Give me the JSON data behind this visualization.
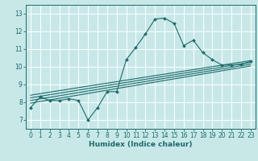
{
  "xlabel": "Humidex (Indice chaleur)",
  "bg_color": "#c8e8e8",
  "line_color": "#1a6b6b",
  "grid_color": "#ffffff",
  "xlim": [
    -0.5,
    23.5
  ],
  "ylim": [
    6.5,
    13.5
  ],
  "xticks": [
    0,
    1,
    2,
    3,
    4,
    5,
    6,
    7,
    8,
    9,
    10,
    11,
    12,
    13,
    14,
    15,
    16,
    17,
    18,
    19,
    20,
    21,
    22,
    23
  ],
  "yticks": [
    7,
    8,
    9,
    10,
    11,
    12,
    13
  ],
  "main_line_x": [
    0,
    1,
    2,
    3,
    4,
    5,
    6,
    7,
    8,
    9,
    10,
    11,
    12,
    13,
    14,
    15,
    16,
    17,
    18,
    19,
    20,
    21,
    22,
    23
  ],
  "main_line_y": [
    7.7,
    8.3,
    8.1,
    8.1,
    8.2,
    8.1,
    7.0,
    7.7,
    8.6,
    8.6,
    10.4,
    11.1,
    11.85,
    12.7,
    12.75,
    12.45,
    11.2,
    11.5,
    10.8,
    10.4,
    10.1,
    10.1,
    10.15,
    10.3
  ],
  "trend_lines": [
    {
      "x": [
        0,
        23
      ],
      "y": [
        7.95,
        10.05
      ]
    },
    {
      "x": [
        0,
        23
      ],
      "y": [
        8.1,
        10.15
      ]
    },
    {
      "x": [
        0,
        23
      ],
      "y": [
        8.25,
        10.25
      ]
    },
    {
      "x": [
        0,
        23
      ],
      "y": [
        8.4,
        10.35
      ]
    }
  ]
}
